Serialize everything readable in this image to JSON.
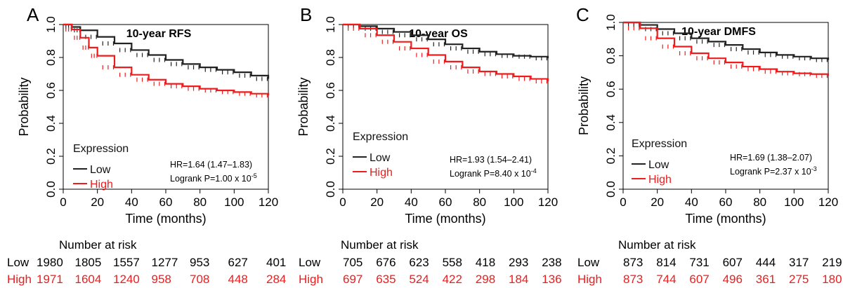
{
  "colors": {
    "low": "#222222",
    "high": "#ee1c1c",
    "axis": "#000000"
  },
  "chart_data": [
    {
      "type": "line",
      "panel_label": "A",
      "title": "10-year RFS",
      "xlabel": "Time (months)",
      "ylabel": "Probability",
      "xlim": [
        0,
        120
      ],
      "ylim": [
        0,
        1
      ],
      "x_ticks": [
        "0",
        "20",
        "40",
        "60",
        "80",
        "100",
        "120"
      ],
      "y_ticks": [
        "0.0",
        "0.2",
        "0.4",
        "0.6",
        "0.8",
        "1.0"
      ],
      "legend_title": "Expression",
      "legend_low": "Low",
      "legend_high": "High",
      "hr_text": "HR=1.64 (1.47–1.83)",
      "logrank_text": "Logrank P=1.00 x 10",
      "logrank_exp": "-5",
      "series": [
        {
          "name": "Low",
          "color": "#222222",
          "x": [
            0,
            5,
            10,
            20,
            30,
            40,
            50,
            60,
            70,
            80,
            90,
            100,
            110,
            120
          ],
          "y": [
            1.0,
            0.985,
            0.965,
            0.925,
            0.885,
            0.845,
            0.815,
            0.785,
            0.76,
            0.74,
            0.725,
            0.71,
            0.69,
            0.67
          ]
        },
        {
          "name": "High",
          "color": "#ee1c1c",
          "x": [
            0,
            5,
            10,
            15,
            20,
            30,
            40,
            50,
            60,
            70,
            80,
            90,
            100,
            110,
            120
          ],
          "y": [
            1.0,
            0.97,
            0.92,
            0.86,
            0.81,
            0.74,
            0.695,
            0.665,
            0.64,
            0.625,
            0.61,
            0.6,
            0.59,
            0.58,
            0.57
          ]
        }
      ],
      "risk_title": "Number at risk",
      "risk_low_label": "Low",
      "risk_high_label": "High",
      "risk_low": [
        "1980",
        "1805",
        "1557",
        "1277",
        "953",
        "627",
        "401"
      ],
      "risk_high": [
        "1971",
        "1604",
        "1240",
        "958",
        "708",
        "448",
        "284"
      ]
    },
    {
      "type": "line",
      "panel_label": "B",
      "title": "10-year OS",
      "xlabel": "Time (months)",
      "ylabel": "Probability",
      "xlim": [
        0,
        120
      ],
      "ylim": [
        0,
        1
      ],
      "x_ticks": [
        "0",
        "20",
        "40",
        "60",
        "80",
        "100",
        "120"
      ],
      "y_ticks": [
        "0.0",
        "0.2",
        "0.4",
        "0.6",
        "0.8",
        "1.0"
      ],
      "legend_title": "Expression",
      "legend_low": "Low",
      "legend_high": "High",
      "hr_text": "HR=1.93 (1.54–2.41)",
      "logrank_text": "Logrank P=8.40 x 10",
      "logrank_exp": "-4",
      "series": [
        {
          "name": "Low",
          "color": "#222222",
          "x": [
            0,
            10,
            20,
            30,
            40,
            50,
            60,
            70,
            80,
            90,
            100,
            110,
            120
          ],
          "y": [
            1.0,
            0.99,
            0.975,
            0.955,
            0.935,
            0.91,
            0.88,
            0.855,
            0.835,
            0.82,
            0.81,
            0.805,
            0.795
          ]
        },
        {
          "name": "High",
          "color": "#ee1c1c",
          "x": [
            0,
            10,
            20,
            30,
            40,
            50,
            60,
            70,
            80,
            90,
            100,
            110,
            120
          ],
          "y": [
            1.0,
            0.975,
            0.935,
            0.895,
            0.855,
            0.815,
            0.775,
            0.74,
            0.715,
            0.7,
            0.685,
            0.67,
            0.655
          ]
        }
      ],
      "risk_title": "Number at risk",
      "risk_low_label": "Low",
      "risk_high_label": "High",
      "risk_low": [
        "705",
        "676",
        "623",
        "558",
        "418",
        "293",
        "238"
      ],
      "risk_high": [
        "697",
        "635",
        "524",
        "422",
        "298",
        "184",
        "136"
      ]
    },
    {
      "type": "line",
      "panel_label": "C",
      "title": "10-year DMFS",
      "xlabel": "Time (months)",
      "ylabel": "Probability",
      "xlim": [
        0,
        120
      ],
      "ylim": [
        0,
        1
      ],
      "x_ticks": [
        "0",
        "20",
        "40",
        "60",
        "80",
        "100",
        "120"
      ],
      "y_ticks": [
        "0.0",
        "0.2",
        "0.4",
        "0.6",
        "0.8",
        "1.0"
      ],
      "legend_title": "Expression",
      "legend_low": "Low",
      "legend_high": "High",
      "hr_text": "HR=1.69 (1.38–2.07)",
      "logrank_text": "Logrank P=2.37 x 10",
      "logrank_exp": "-3",
      "series": [
        {
          "name": "Low",
          "color": "#222222",
          "x": [
            0,
            10,
            20,
            30,
            40,
            50,
            60,
            70,
            80,
            90,
            100,
            110,
            120
          ],
          "y": [
            1.0,
            0.985,
            0.96,
            0.935,
            0.905,
            0.885,
            0.865,
            0.84,
            0.82,
            0.805,
            0.795,
            0.785,
            0.775
          ]
        },
        {
          "name": "High",
          "color": "#ee1c1c",
          "x": [
            0,
            10,
            20,
            30,
            40,
            50,
            60,
            70,
            80,
            90,
            100,
            110,
            120
          ],
          "y": [
            1.0,
            0.965,
            0.905,
            0.855,
            0.815,
            0.785,
            0.76,
            0.735,
            0.72,
            0.705,
            0.695,
            0.69,
            0.68
          ]
        }
      ],
      "risk_title": "Number at risk",
      "risk_low_label": "Low",
      "risk_high_label": "High",
      "risk_low": [
        "873",
        "814",
        "731",
        "607",
        "444",
        "317",
        "219"
      ],
      "risk_high": [
        "873",
        "744",
        "607",
        "496",
        "361",
        "275",
        "180"
      ]
    }
  ]
}
